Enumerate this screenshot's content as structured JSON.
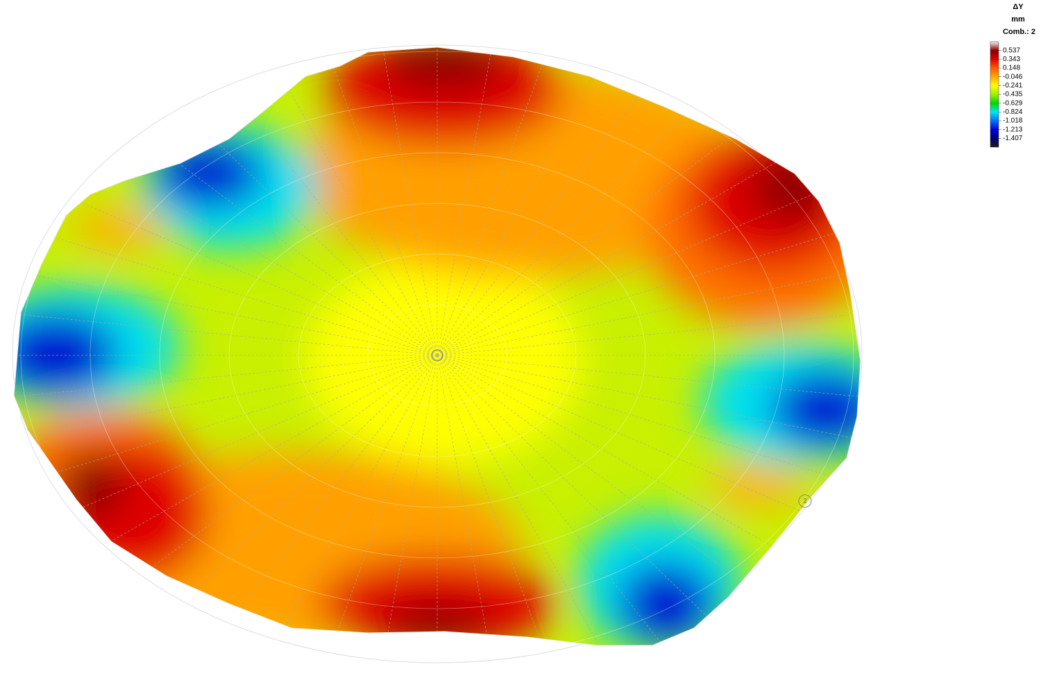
{
  "legend": {
    "title": "ΔY",
    "unit": "mm",
    "combination": "Comb.: 2",
    "levels": [
      "0.537",
      "0.343",
      "0.148",
      "-0.046",
      "-0.241",
      "-0.435",
      "-0.629",
      "-0.824",
      "-1.018",
      "-1.213",
      "-1.407"
    ],
    "colors": [
      "#f4f4f4",
      "#8b0000",
      "#e00000",
      "#ff5a00",
      "#ffa800",
      "#ffff00",
      "#a0f000",
      "#00d800",
      "#00e8f0",
      "#0070ff",
      "#0000d8",
      "#00007a",
      "#1a1a1a"
    ]
  },
  "node_label": "2"
}
